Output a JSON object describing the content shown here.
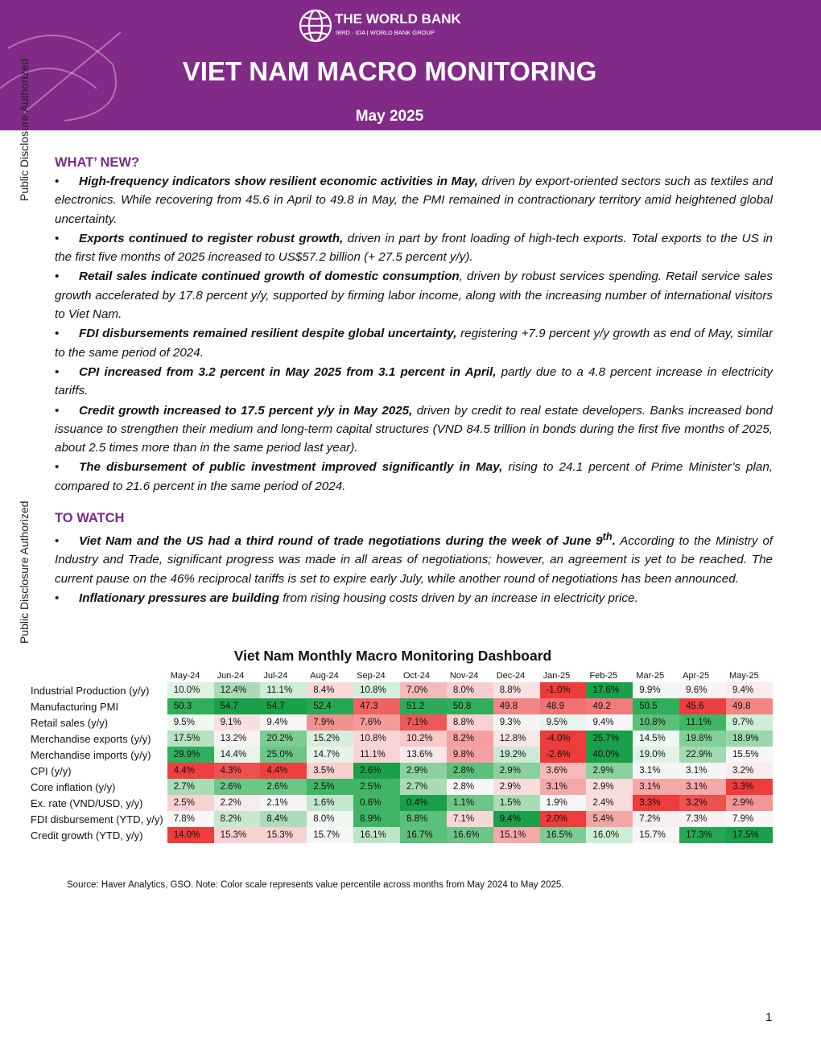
{
  "side_label": "Public Disclosure Authorized",
  "header": {
    "org": "THE WORLD BANK",
    "org_sub": "IBRD · IDA | WORLD BANK GROUP",
    "title": "VIET NAM MACRO MONITORING",
    "date": "May 2025",
    "color": "#822a88"
  },
  "sections": [
    {
      "heading": "WHAT’ NEW?",
      "bullets": [
        [
          {
            "style": "bold",
            "text": "High-frequency indicators show resilient economic activities in May,"
          },
          {
            "style": "plain",
            "text": " driven by export-oriented sectors such as textiles and electronics. While recovering from 45.6 in April to 49.8 in May, the PMI remained in contractionary territory amid heightened global uncertainty."
          }
        ],
        [
          {
            "style": "bold",
            "text": "Exports continued to register robust growth,"
          },
          {
            "style": "plain",
            "text": " driven in part by front loading of high-tech exports. Total exports to the US in the first five months of 2025 increased to US$57.2 billion (+ 27.5 percent y/y)."
          }
        ],
        [
          {
            "style": "bold",
            "text": "Retail sales indicate continued growth of domestic consumption"
          },
          {
            "style": "plain",
            "text": ", driven by robust services spending. Retail service sales growth accelerated by 17.8 percent y/y, supported by firming labor income, along with the increasing number of international visitors to Viet Nam."
          }
        ],
        [
          {
            "style": "bold",
            "text": "FDI disbursements remained resilient despite global uncertainty,"
          },
          {
            "style": "plain",
            "text": " registering +7.9 percent y/y growth as end of May, similar to the same period of 2024."
          }
        ],
        [
          {
            "style": "bold",
            "text": "CPI increased from 3.2 percent in May 2025 from 3.1 percent in April,"
          },
          {
            "style": "plain",
            "text": " partly due to a 4.8 percent increase in electricity tariffs."
          }
        ],
        [
          {
            "style": "bold",
            "text": "Credit growth increased to 17.5 percent y/y in May 2025,"
          },
          {
            "style": "plain",
            "text": " driven by credit to real estate developers. Banks increased bond issuance to strengthen their medium and long-term capital structures (VND 84.5 trillion in bonds during the first five months of 2025, about 2.5 times more than in the same period last year)."
          }
        ],
        [
          {
            "style": "bold",
            "text": "The disbursement of public investment improved significantly in May,"
          },
          {
            "style": "plain",
            "text": " rising to 24.1 percent of Prime Minister’s plan, compared to 21.6 percent in the same period of 2024."
          }
        ]
      ]
    },
    {
      "heading": "TO WATCH",
      "bullets": [
        [
          {
            "style": "bold",
            "text": "Viet Nam and the US had a third round of trade negotiations during the week of June 9"
          },
          {
            "style": "boldsup",
            "text": "th"
          },
          {
            "style": "bold",
            "text": "."
          },
          {
            "style": "plain",
            "text": " According to the Ministry of Industry and Trade, significant progress was made in all areas of negotiations; however, an agreement is yet to be reached. The current pause on the 46% reciprocal tariffs is set to expire early July, while another round of negotiations has been announced."
          }
        ],
        [
          {
            "style": "bold",
            "text": "Inflationary pressures are building"
          },
          {
            "style": "plain",
            "text": " from rising housing costs driven by an increase in electricity price."
          }
        ]
      ]
    }
  ],
  "dashboard": {
    "title": "Viet Nam Monthly Macro Monitoring Dashboard",
    "columns": [
      "May-24",
      "Jun-24",
      "Jul-24",
      "Aug-24",
      "Sep-24",
      "Oct-24",
      "Nov-24",
      "Dec-24",
      "Jan-25",
      "Feb-25",
      "Mar-25",
      "Apr-25",
      "May-25"
    ],
    "rows": [
      {
        "label": "Industrial Production (y/y)",
        "cells": [
          "10.0%",
          "12.4%",
          "11.1%",
          "8.4%",
          "10.8%",
          "7.0%",
          "8.0%",
          "8.8%",
          "-1.0%",
          "17.6%",
          "9.9%",
          "9.6%",
          "9.4%"
        ],
        "colors": [
          "#e0f1e4",
          "#a9dcb5",
          "#d0ebd7",
          "#f9d9d9",
          "#d6eedc",
          "#f6b9b9",
          "#f8cfcf",
          "#f9e2e2",
          "#ee3b3b",
          "#1aa04a",
          "#f1f7f2",
          "#f9f3f3",
          "#f9ecec"
        ]
      },
      {
        "label": "Manufacturing PMI",
        "cells": [
          "50.3",
          "54.7",
          "54.7",
          "52.4",
          "47.3",
          "51.2",
          "50.8",
          "49.8",
          "48.9",
          "49.2",
          "50.5",
          "45.6",
          "49.8"
        ],
        "colors": [
          "#2fae5c",
          "#1aa04a",
          "#1aa04a",
          "#24a853",
          "#f06262",
          "#2bab58",
          "#2fae5c",
          "#f28585",
          "#f07272",
          "#f27a7a",
          "#2fae5c",
          "#ec3e3e",
          "#f28585"
        ]
      },
      {
        "label": "Retail sales (y/y)",
        "cells": [
          "9.5%",
          "9.1%",
          "9.4%",
          "7.9%",
          "7.6%",
          "7.1%",
          "8.8%",
          "9.3%",
          "9.5%",
          "9.4%",
          "10.8%",
          "11.1%",
          "9.7%"
        ],
        "colors": [
          "#eef7f0",
          "#f8e0e0",
          "#f6f6f6",
          "#f39090",
          "#f39a9a",
          "#ee5858",
          "#f8d2d2",
          "#f7f4f4",
          "#e9f5ec",
          "#f7f7f7",
          "#5cbf7a",
          "#3fb565",
          "#cfeed8"
        ]
      },
      {
        "label": "Merchandise exports (y/y)",
        "cells": [
          "17.5%",
          "13.2%",
          "20.2%",
          "15.2%",
          "10.8%",
          "10.2%",
          "8.2%",
          "12.8%",
          "-4.0%",
          "25.7%",
          "14.5%",
          "19.8%",
          "18.9%"
        ],
        "colors": [
          "#b7e2c2",
          "#f7f1f1",
          "#7ccd93",
          "#d7efdd",
          "#f9d4d4",
          "#f8c9c9",
          "#f4a0a0",
          "#f9e6e6",
          "#ee3b3b",
          "#1aa04a",
          "#eef7f0",
          "#83cf98",
          "#9bd7ab"
        ]
      },
      {
        "label": "Merchandise imports (y/y)",
        "cells": [
          "29.9%",
          "14.4%",
          "25.0%",
          "14.7%",
          "11.1%",
          "13.6%",
          "9.8%",
          "19.2%",
          "-2.6%",
          "40.0%",
          "19.0%",
          "22.9%",
          "15.5%"
        ],
        "colors": [
          "#2fae5c",
          "#e8f4eb",
          "#6cc686",
          "#e6f3e9",
          "#f9d4d4",
          "#f5e8e8",
          "#f4a2a2",
          "#cbe9d3",
          "#ee3b3b",
          "#1aa04a",
          "#e1f2e5",
          "#a3dab2",
          "#f6f6f6"
        ]
      },
      {
        "label": "CPI (y/y)",
        "cells": [
          "4.4%",
          "4.3%",
          "4.4%",
          "3.5%",
          "2.6%",
          "2.9%",
          "2.8%",
          "2.9%",
          "3.6%",
          "2.9%",
          "3.1%",
          "3.1%",
          "3.2%"
        ],
        "colors": [
          "#ee4040",
          "#ef5050",
          "#ee4040",
          "#f8d0d0",
          "#1aa04a",
          "#8bd19f",
          "#5cbf7a",
          "#8bd19f",
          "#f6b9b9",
          "#8bd19f",
          "#f5f5f5",
          "#f5f5f5",
          "#f9ecec"
        ]
      },
      {
        "label": "Core inflation (y/y)",
        "cells": [
          "2.7%",
          "2.6%",
          "2.6%",
          "2.5%",
          "2.5%",
          "2.7%",
          "2.8%",
          "2.9%",
          "3.1%",
          "2.9%",
          "3.1%",
          "3.1%",
          "3.3%"
        ],
        "colors": [
          "#a9dcb5",
          "#6cc686",
          "#6cc686",
          "#3fb565",
          "#3fb565",
          "#a9dcb5",
          "#f6f6f6",
          "#f9dddd",
          "#f5a8a8",
          "#f9dddd",
          "#f5a8a8",
          "#f5a8a8",
          "#ee3b3b"
        ]
      },
      {
        "label": "Ex. rate (VND/USD, y/y)",
        "cells": [
          "2.5%",
          "2.2%",
          "2.1%",
          "1.6%",
          "0.6%",
          "0.4%",
          "1.1%",
          "1.5%",
          "1.9%",
          "2.4%",
          "3.3%",
          "3.2%",
          "2.9%"
        ],
        "colors": [
          "#f8d2d2",
          "#f7ecec",
          "#f5f5f5",
          "#c3e6cc",
          "#3fb565",
          "#1aa04a",
          "#6cc686",
          "#a9dcb5",
          "#f6f6f6",
          "#f9dddd",
          "#ee3b3b",
          "#ef5050",
          "#f39595"
        ]
      },
      {
        "label": "FDI disbursement (YTD, y/y)",
        "cells": [
          "7.8%",
          "8.2%",
          "8.4%",
          "8.0%",
          "8.9%",
          "8.8%",
          "7.1%",
          "9.4%",
          "2.0%",
          "5.4%",
          "7.2%",
          "7.3%",
          "7.9%"
        ],
        "colors": [
          "#f6f6f6",
          "#c7e8cf",
          "#acdcb9",
          "#eef7f0",
          "#3fb565",
          "#5cbf7a",
          "#f8d7d7",
          "#1aa04a",
          "#ee3b3b",
          "#f4a6a6",
          "#f7eeee",
          "#f7f1f1",
          "#f6f6f6"
        ]
      },
      {
        "label": "Credit growth (YTD, y/y)",
        "cells": [
          "14.0%",
          "15.3%",
          "15.3%",
          "15.7%",
          "16.1%",
          "16.7%",
          "16.6%",
          "15.1%",
          "16.5%",
          "16.0%",
          "15.7%",
          "17.3%",
          "17.5%"
        ],
        "colors": [
          "#ee3b3b",
          "#f8d2d2",
          "#f8d2d2",
          "#f6f6f6",
          "#bfe5c9",
          "#5cbf7a",
          "#6cc686",
          "#f5a8a8",
          "#7ccd93",
          "#cfeed8",
          "#f6f6f6",
          "#24a853",
          "#1aa04a"
        ]
      }
    ],
    "source": "Source: Haver Analytics, GSO. Note: Color scale represents value percentile across months from May 2024 to May 2025."
  },
  "page_number": "1"
}
